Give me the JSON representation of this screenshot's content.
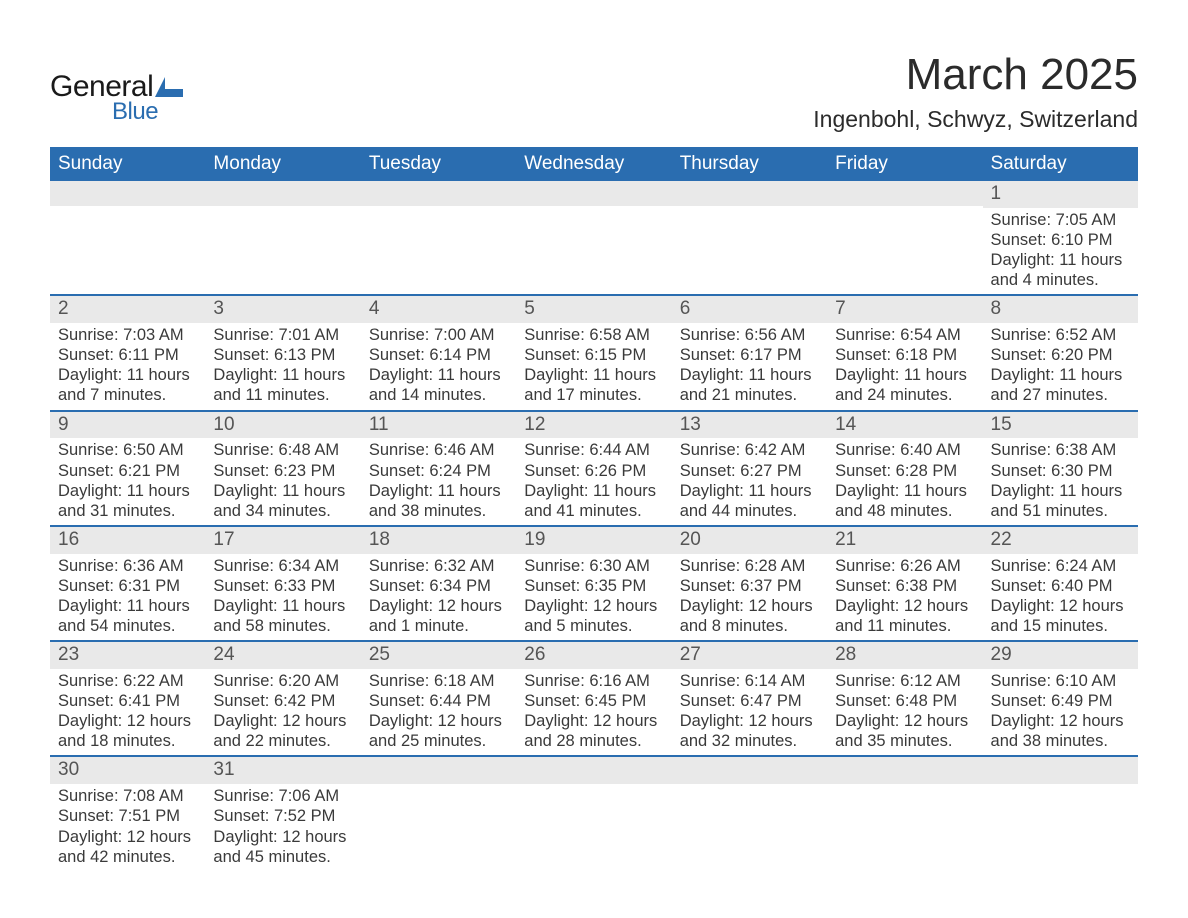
{
  "logo": {
    "text_general": "General",
    "text_blue": "Blue",
    "shape_fill": "#2a6db0"
  },
  "header": {
    "month_title": "March 2025",
    "location": "Ingenbohl, Schwyz, Switzerland"
  },
  "styling": {
    "header_bg": "#2a6db0",
    "header_text": "#ffffff",
    "stripe_bg": "#e9e9e9",
    "row_border": "#2a6db0",
    "body_text_color": "#3a3a3a",
    "day_num_color": "#555555",
    "page_bg": "#ffffff",
    "month_title_fontsize": 44,
    "location_fontsize": 23,
    "dayheader_fontsize": 19,
    "daynum_fontsize": 19,
    "body_fontsize": 16.5
  },
  "day_headers": [
    "Sunday",
    "Monday",
    "Tuesday",
    "Wednesday",
    "Thursday",
    "Friday",
    "Saturday"
  ],
  "weeks": [
    [
      null,
      null,
      null,
      null,
      null,
      null,
      {
        "n": "1",
        "sunrise": "7:05 AM",
        "sunset": "6:10 PM",
        "daylight": "11 hours and 4 minutes."
      }
    ],
    [
      {
        "n": "2",
        "sunrise": "7:03 AM",
        "sunset": "6:11 PM",
        "daylight": "11 hours and 7 minutes."
      },
      {
        "n": "3",
        "sunrise": "7:01 AM",
        "sunset": "6:13 PM",
        "daylight": "11 hours and 11 minutes."
      },
      {
        "n": "4",
        "sunrise": "7:00 AM",
        "sunset": "6:14 PM",
        "daylight": "11 hours and 14 minutes."
      },
      {
        "n": "5",
        "sunrise": "6:58 AM",
        "sunset": "6:15 PM",
        "daylight": "11 hours and 17 minutes."
      },
      {
        "n": "6",
        "sunrise": "6:56 AM",
        "sunset": "6:17 PM",
        "daylight": "11 hours and 21 minutes."
      },
      {
        "n": "7",
        "sunrise": "6:54 AM",
        "sunset": "6:18 PM",
        "daylight": "11 hours and 24 minutes."
      },
      {
        "n": "8",
        "sunrise": "6:52 AM",
        "sunset": "6:20 PM",
        "daylight": "11 hours and 27 minutes."
      }
    ],
    [
      {
        "n": "9",
        "sunrise": "6:50 AM",
        "sunset": "6:21 PM",
        "daylight": "11 hours and 31 minutes."
      },
      {
        "n": "10",
        "sunrise": "6:48 AM",
        "sunset": "6:23 PM",
        "daylight": "11 hours and 34 minutes."
      },
      {
        "n": "11",
        "sunrise": "6:46 AM",
        "sunset": "6:24 PM",
        "daylight": "11 hours and 38 minutes."
      },
      {
        "n": "12",
        "sunrise": "6:44 AM",
        "sunset": "6:26 PM",
        "daylight": "11 hours and 41 minutes."
      },
      {
        "n": "13",
        "sunrise": "6:42 AM",
        "sunset": "6:27 PM",
        "daylight": "11 hours and 44 minutes."
      },
      {
        "n": "14",
        "sunrise": "6:40 AM",
        "sunset": "6:28 PM",
        "daylight": "11 hours and 48 minutes."
      },
      {
        "n": "15",
        "sunrise": "6:38 AM",
        "sunset": "6:30 PM",
        "daylight": "11 hours and 51 minutes."
      }
    ],
    [
      {
        "n": "16",
        "sunrise": "6:36 AM",
        "sunset": "6:31 PM",
        "daylight": "11 hours and 54 minutes."
      },
      {
        "n": "17",
        "sunrise": "6:34 AM",
        "sunset": "6:33 PM",
        "daylight": "11 hours and 58 minutes."
      },
      {
        "n": "18",
        "sunrise": "6:32 AM",
        "sunset": "6:34 PM",
        "daylight": "12 hours and 1 minute."
      },
      {
        "n": "19",
        "sunrise": "6:30 AM",
        "sunset": "6:35 PM",
        "daylight": "12 hours and 5 minutes."
      },
      {
        "n": "20",
        "sunrise": "6:28 AM",
        "sunset": "6:37 PM",
        "daylight": "12 hours and 8 minutes."
      },
      {
        "n": "21",
        "sunrise": "6:26 AM",
        "sunset": "6:38 PM",
        "daylight": "12 hours and 11 minutes."
      },
      {
        "n": "22",
        "sunrise": "6:24 AM",
        "sunset": "6:40 PM",
        "daylight": "12 hours and 15 minutes."
      }
    ],
    [
      {
        "n": "23",
        "sunrise": "6:22 AM",
        "sunset": "6:41 PM",
        "daylight": "12 hours and 18 minutes."
      },
      {
        "n": "24",
        "sunrise": "6:20 AM",
        "sunset": "6:42 PM",
        "daylight": "12 hours and 22 minutes."
      },
      {
        "n": "25",
        "sunrise": "6:18 AM",
        "sunset": "6:44 PM",
        "daylight": "12 hours and 25 minutes."
      },
      {
        "n": "26",
        "sunrise": "6:16 AM",
        "sunset": "6:45 PM",
        "daylight": "12 hours and 28 minutes."
      },
      {
        "n": "27",
        "sunrise": "6:14 AM",
        "sunset": "6:47 PM",
        "daylight": "12 hours and 32 minutes."
      },
      {
        "n": "28",
        "sunrise": "6:12 AM",
        "sunset": "6:48 PM",
        "daylight": "12 hours and 35 minutes."
      },
      {
        "n": "29",
        "sunrise": "6:10 AM",
        "sunset": "6:49 PM",
        "daylight": "12 hours and 38 minutes."
      }
    ],
    [
      {
        "n": "30",
        "sunrise": "7:08 AM",
        "sunset": "7:51 PM",
        "daylight": "12 hours and 42 minutes."
      },
      {
        "n": "31",
        "sunrise": "7:06 AM",
        "sunset": "7:52 PM",
        "daylight": "12 hours and 45 minutes."
      },
      null,
      null,
      null,
      null,
      null
    ]
  ],
  "labels": {
    "sunrise": "Sunrise: ",
    "sunset": "Sunset: ",
    "daylight": "Daylight: "
  }
}
